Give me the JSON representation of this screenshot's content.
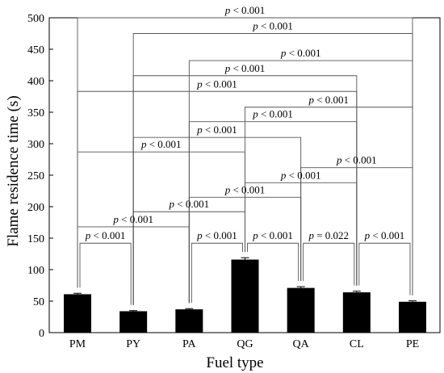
{
  "chart_data": {
    "type": "bar",
    "xlabel": "Fuel type",
    "ylabel": "Flame residence time (s)",
    "ylim": [
      0,
      500
    ],
    "yticks": [
      0,
      50,
      100,
      150,
      200,
      250,
      300,
      350,
      400,
      450,
      500
    ],
    "categories": [
      "PM",
      "PY",
      "PA",
      "QG",
      "QA",
      "CL",
      "PE"
    ],
    "values": [
      61,
      34,
      37,
      116,
      71,
      64,
      49
    ],
    "errors": [
      1.5,
      1,
      1.2,
      3,
      2,
      1.8,
      1.5
    ],
    "bar_color": "#000000",
    "grid": false,
    "legend": "none",
    "comparisons": [
      {
        "from": "PM",
        "to": "PE",
        "y": 500,
        "p_symbol": "p",
        "p_rest": " < 0.001"
      },
      {
        "from": "PY",
        "to": "PE",
        "y": 475,
        "p_symbol": "p",
        "p_rest": " < 0.001"
      },
      {
        "from": "PA",
        "to": "PE",
        "y": 432,
        "p_symbol": "p",
        "p_rest": " < 0.001"
      },
      {
        "from": "PY",
        "to": "CL",
        "y": 408,
        "p_symbol": "p",
        "p_rest": " < 0.001"
      },
      {
        "from": "PM",
        "to": "CL",
        "y": 383,
        "p_symbol": "p",
        "p_rest": " < 0.001"
      },
      {
        "from": "QG",
        "to": "PE",
        "y": 358,
        "p_symbol": "p",
        "p_rest": " < 0.001"
      },
      {
        "from": "PA",
        "to": "CL",
        "y": 335,
        "p_symbol": "p",
        "p_rest": " < 0.001"
      },
      {
        "from": "PY",
        "to": "QA",
        "y": 310,
        "p_symbol": "p",
        "p_rest": " < 0.001"
      },
      {
        "from": "PM",
        "to": "QG",
        "y": 287,
        "p_symbol": "p",
        "p_rest": " < 0.001"
      },
      {
        "from": "QA",
        "to": "PE",
        "y": 262,
        "p_symbol": "p",
        "p_rest": " < 0.001"
      },
      {
        "from": "QG",
        "to": "CL",
        "y": 238,
        "p_symbol": "p",
        "p_rest": " < 0.001"
      },
      {
        "from": "PA",
        "to": "QA",
        "y": 215,
        "p_symbol": "p",
        "p_rest": " < 0.001"
      },
      {
        "from": "PY",
        "to": "QG",
        "y": 192,
        "p_symbol": "p",
        "p_rest": " < 0.001"
      },
      {
        "from": "PM",
        "to": "PA",
        "y": 168,
        "p_symbol": "p",
        "p_rest": " < 0.001"
      },
      {
        "from": "PM",
        "to": "PY",
        "y": 142,
        "p_symbol": "p",
        "p_rest": " < 0.001"
      },
      {
        "from": "PA",
        "to": "QG",
        "y": 142,
        "p_symbol": "p",
        "p_rest": " < 0.001"
      },
      {
        "from": "QG",
        "to": "QA",
        "y": 142,
        "p_symbol": "p",
        "p_rest": " < 0.001"
      },
      {
        "from": "QA",
        "to": "CL",
        "y": 142,
        "p_symbol": "p",
        "p_rest": " = 0.022"
      },
      {
        "from": "CL",
        "to": "PE",
        "y": 142,
        "p_symbol": "p",
        "p_rest": " < 0.001"
      }
    ]
  }
}
